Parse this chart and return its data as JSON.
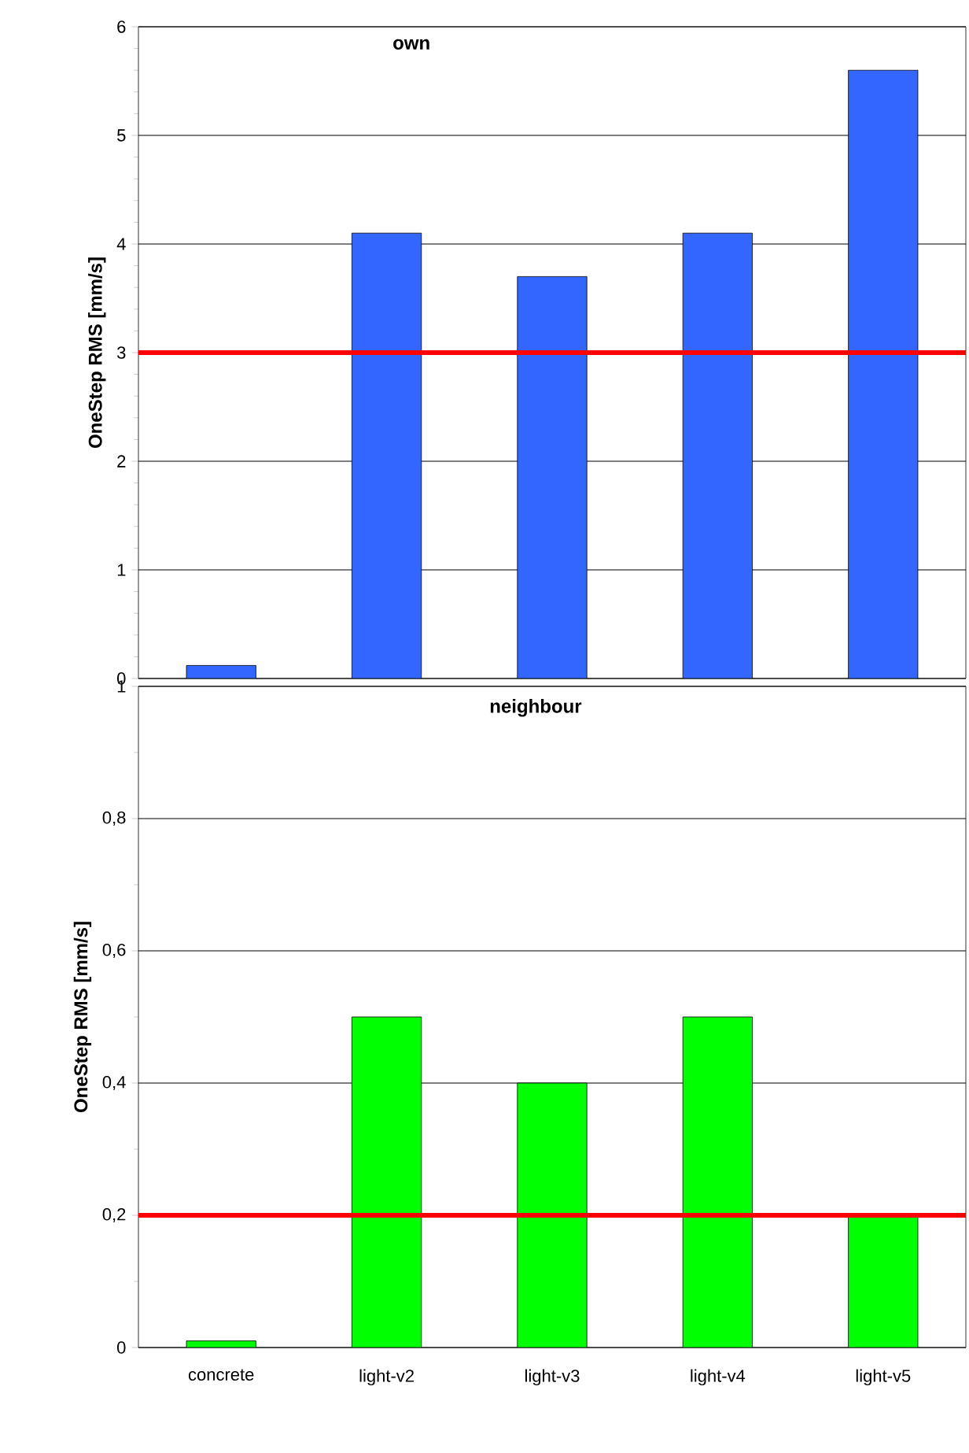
{
  "chart_data": [
    {
      "type": "bar",
      "title": "own",
      "ylabel": "OneStep RMS [mm/s]",
      "categories": [
        null,
        null,
        null,
        null,
        null
      ],
      "values": [
        0.12,
        4.1,
        3.7,
        4.1,
        5.6
      ],
      "color": "#3366ff",
      "ylim": [
        0,
        6
      ],
      "yticks": [
        0,
        1,
        2,
        3,
        4,
        5,
        6
      ],
      "grid": "y",
      "ref_lines": [
        {
          "axis": "y",
          "value": 3,
          "color": "#ff0000"
        }
      ]
    },
    {
      "type": "bar",
      "title": "neighbour",
      "ylabel": "OneStep RMS [mm/s]",
      "categories": [
        "concrete",
        "light-v2",
        "light-v3",
        "light-v4",
        "light-v5"
      ],
      "values": [
        0.01,
        0.5,
        0.4,
        0.5,
        0.2
      ],
      "color": "#00ff00",
      "ylim": [
        0,
        1
      ],
      "yticks": [
        0,
        {
          "value": 0.2,
          "label": "0,2"
        },
        {
          "value": 0.4,
          "label": "0,4"
        },
        {
          "value": 0.6,
          "label": "0,6"
        },
        {
          "value": 0.8,
          "label": "0,8"
        },
        1
      ],
      "grid": "y",
      "ref_lines": [
        {
          "axis": "y",
          "value": 0.2,
          "color": "#ff0000"
        }
      ]
    }
  ]
}
